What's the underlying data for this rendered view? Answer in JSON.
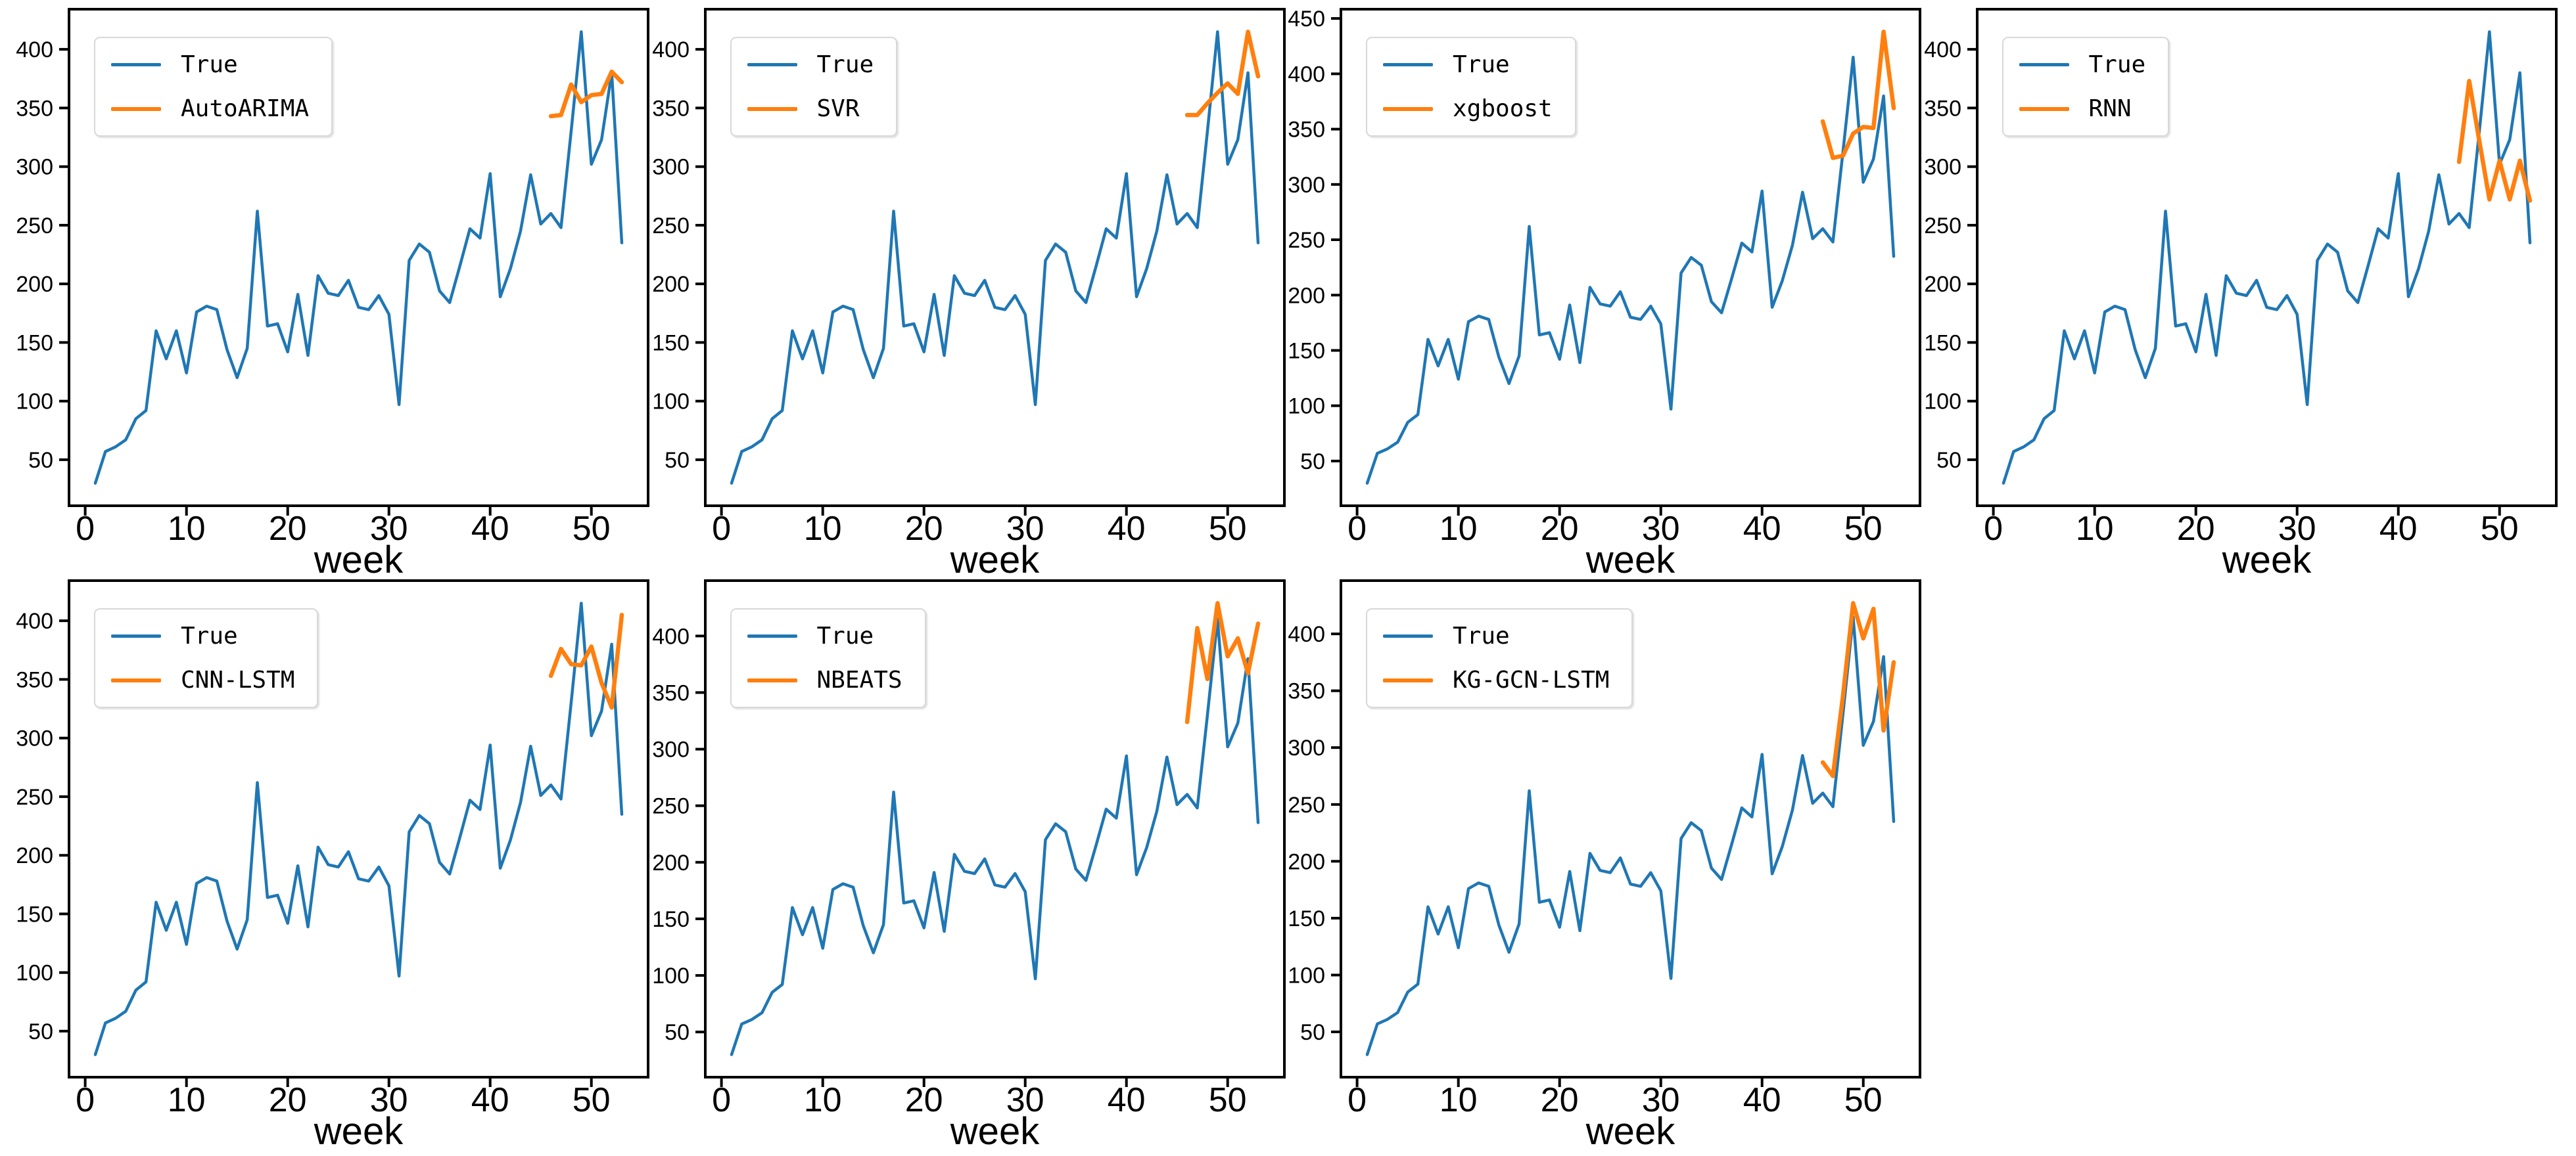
{
  "chart_data": {
    "type": "line",
    "title": "",
    "xlabel": "week",
    "legend_position": "upper left",
    "grid": false,
    "xticks": [
      0,
      10,
      20,
      30,
      40,
      50
    ],
    "ytick_step": 50,
    "xlim": [
      -1.6,
      55.6
    ],
    "colors": {
      "true_line": "#1f77b4",
      "forecast_line": "#ff7f0e",
      "axis": "#000000",
      "legend_border": "#d8d8d8"
    },
    "x_weeks": [
      1,
      2,
      3,
      4,
      5,
      6,
      7,
      8,
      9,
      10,
      11,
      12,
      13,
      14,
      15,
      16,
      17,
      18,
      19,
      20,
      21,
      22,
      23,
      24,
      25,
      26,
      27,
      28,
      29,
      30,
      31,
      32,
      33,
      34,
      35,
      36,
      37,
      38,
      39,
      40,
      41,
      42,
      43,
      44,
      45,
      46,
      47,
      48,
      49,
      50,
      51,
      52,
      53
    ],
    "true_series": {
      "name": "True",
      "values": [
        30,
        57,
        61,
        67,
        85,
        92,
        160,
        136,
        160,
        124,
        176,
        181,
        178,
        144,
        120,
        145,
        262,
        164,
        166,
        142,
        191,
        139,
        207,
        192,
        190,
        203,
        180,
        178,
        190,
        174,
        97,
        220,
        234,
        227,
        194,
        184,
        215,
        247,
        239,
        294,
        189,
        213,
        245,
        293,
        251,
        260,
        248,
        330,
        415,
        302,
        323,
        380,
        235
      ]
    },
    "forecast_weeks": [
      46,
      47,
      48,
      49,
      50,
      51,
      52,
      53
    ],
    "panels": [
      {
        "model": "AutoARIMA",
        "values": [
          343,
          344,
          370,
          355,
          361,
          362,
          381,
          372
        ]
      },
      {
        "model": "SVR",
        "values": [
          344,
          344,
          354,
          363,
          371,
          362,
          415,
          377
        ]
      },
      {
        "model": "xgboost",
        "values": [
          357,
          324,
          326,
          346,
          352,
          351,
          438,
          369
        ]
      },
      {
        "model": "RNN",
        "values": [
          304,
          373,
          322,
          272,
          305,
          272,
          305,
          271
        ]
      },
      {
        "model": "CNN-LSTM",
        "values": [
          353,
          376,
          363,
          362,
          378,
          347,
          326,
          405
        ]
      },
      {
        "model": "NBEATS",
        "values": [
          324,
          407,
          362,
          429,
          382,
          398,
          367,
          411
        ]
      },
      {
        "model": "KG-GCN-LSTM",
        "values": [
          287,
          275,
          346,
          427,
          396,
          422,
          315,
          375
        ]
      }
    ]
  }
}
